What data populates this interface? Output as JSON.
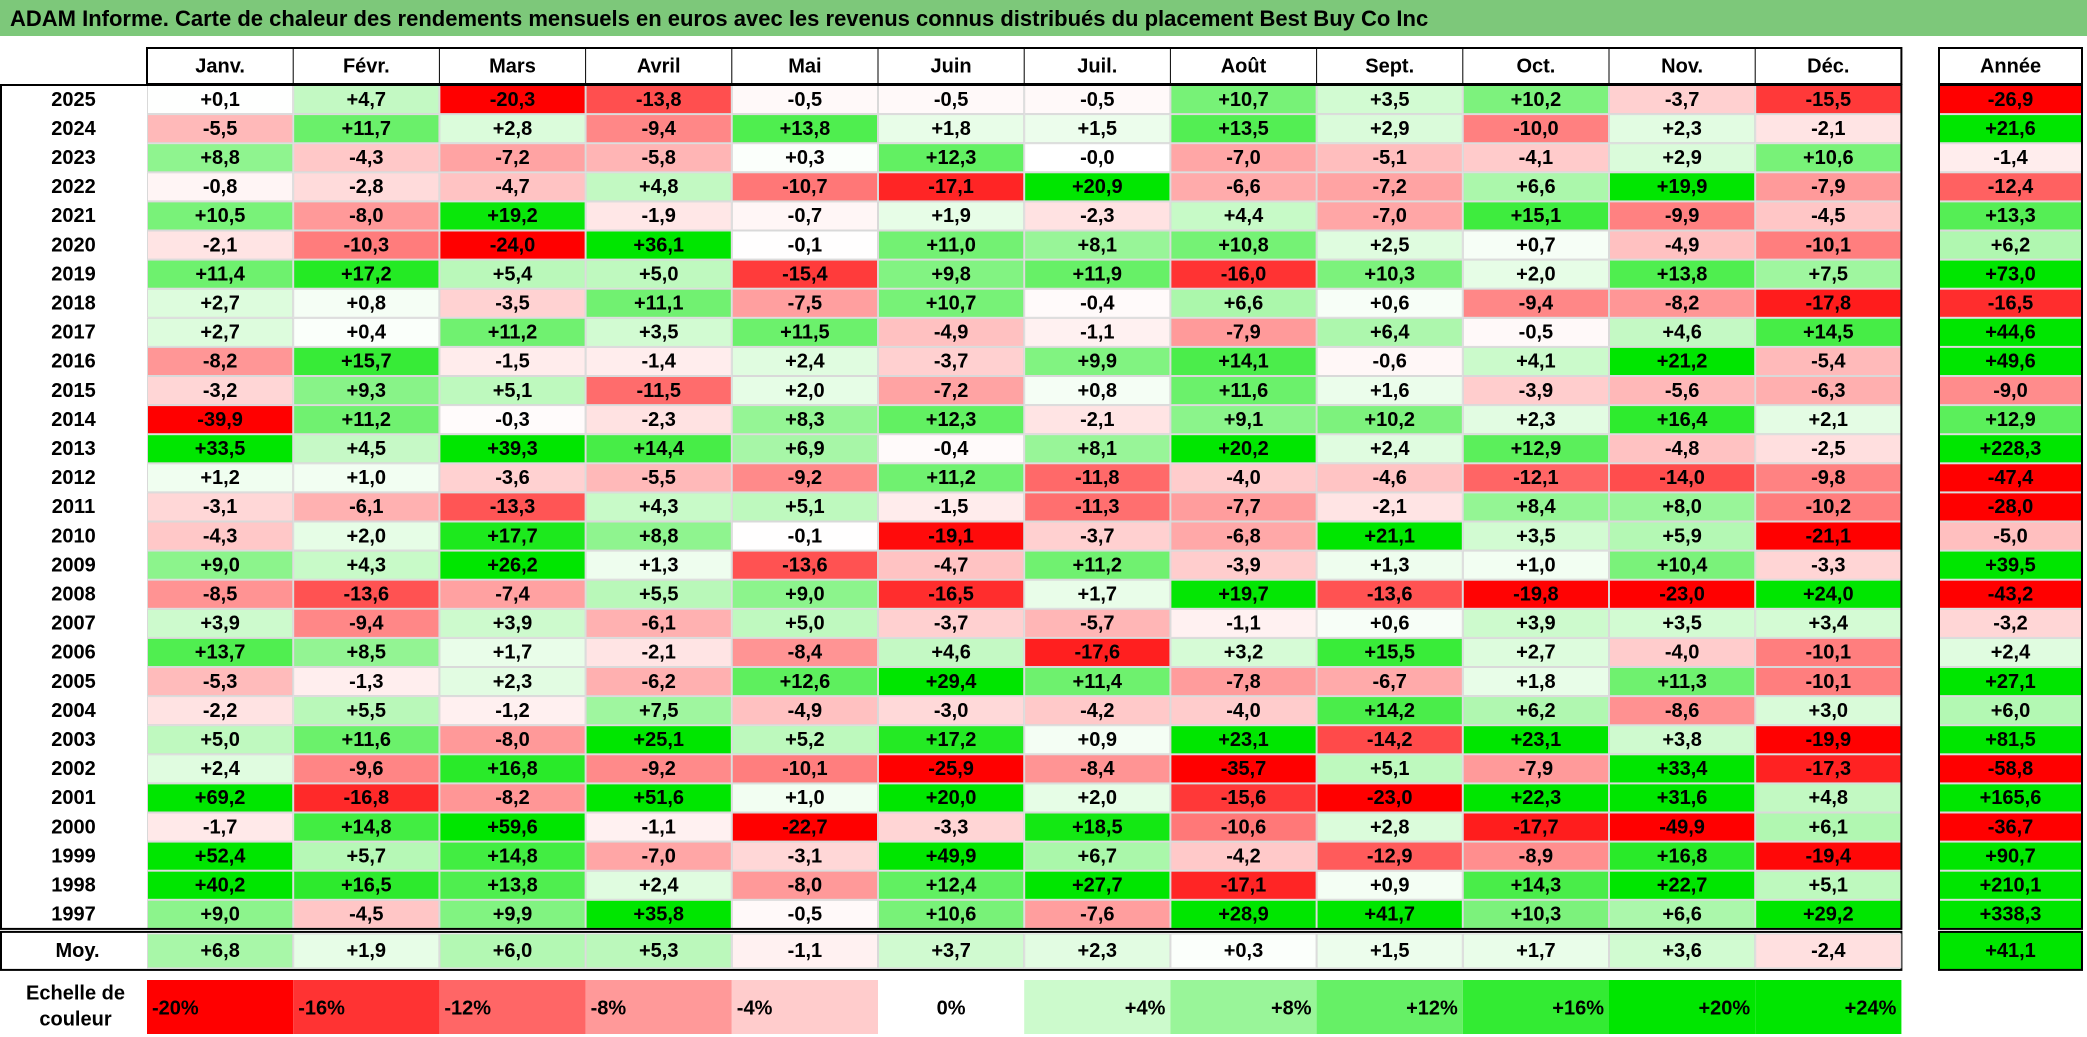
{
  "title": "ADAM Informe. Carte de chaleur des rendements mensuels en euros avec les revenus connus distribués du placement Best Buy Co Inc",
  "chart_data": {
    "type": "heatmap",
    "months": [
      "Janv.",
      "Févr.",
      "Mars",
      "Avril",
      "Mai",
      "Juin",
      "Juil.",
      "Août",
      "Sept.",
      "Oct.",
      "Nov.",
      "Déc."
    ],
    "year_header": "Année",
    "avg_label": "Moy.",
    "scale_label": "Echelle de couleur",
    "colors": {
      "negative_max": "#ff0000",
      "neutral": "#ffffff",
      "positive_max": "#00e600"
    },
    "rows": [
      {
        "year": "2025",
        "values": [
          "+0,1",
          "+4,7",
          "-20,3",
          "-13,8",
          "-0,5",
          "-0,5",
          "-0,5",
          "+10,7",
          "+3,5",
          "+10,2",
          "-3,7",
          "-15,5"
        ],
        "annual": "-26,9"
      },
      {
        "year": "2024",
        "values": [
          "-5,5",
          "+11,7",
          "+2,8",
          "-9,4",
          "+13,8",
          "+1,8",
          "+1,5",
          "+13,5",
          "+2,9",
          "-10,0",
          "+2,3",
          "-2,1"
        ],
        "annual": "+21,6"
      },
      {
        "year": "2023",
        "values": [
          "+8,8",
          "-4,3",
          "-7,2",
          "-5,8",
          "+0,3",
          "+12,3",
          "-0,0",
          "-7,0",
          "-5,1",
          "-4,1",
          "+2,9",
          "+10,6"
        ],
        "annual": "-1,4"
      },
      {
        "year": "2022",
        "values": [
          "-0,8",
          "-2,8",
          "-4,7",
          "+4,8",
          "-10,7",
          "-17,1",
          "+20,9",
          "-6,6",
          "-7,2",
          "+6,6",
          "+19,9",
          "-7,9"
        ],
        "annual": "-12,4"
      },
      {
        "year": "2021",
        "values": [
          "+10,5",
          "-8,0",
          "+19,2",
          "-1,9",
          "-0,7",
          "+1,9",
          "-2,3",
          "+4,4",
          "-7,0",
          "+15,1",
          "-9,9",
          "-4,5"
        ],
        "annual": "+13,3"
      },
      {
        "year": "2020",
        "values": [
          "-2,1",
          "-10,3",
          "-24,0",
          "+36,1",
          "-0,1",
          "+11,0",
          "+8,1",
          "+10,8",
          "+2,5",
          "+0,7",
          "-4,9",
          "-10,1"
        ],
        "annual": "+6,2"
      },
      {
        "year": "2019",
        "values": [
          "+11,4",
          "+17,2",
          "+5,4",
          "+5,0",
          "-15,4",
          "+9,8",
          "+11,9",
          "-16,0",
          "+10,3",
          "+2,0",
          "+13,8",
          "+7,5"
        ],
        "annual": "+73,0"
      },
      {
        "year": "2018",
        "values": [
          "+2,7",
          "+0,8",
          "-3,5",
          "+11,1",
          "-7,5",
          "+10,7",
          "-0,4",
          "+6,6",
          "+0,6",
          "-9,4",
          "-8,2",
          "-17,8"
        ],
        "annual": "-16,5"
      },
      {
        "year": "2017",
        "values": [
          "+2,7",
          "+0,4",
          "+11,2",
          "+3,5",
          "+11,5",
          "-4,9",
          "-1,1",
          "-7,9",
          "+6,4",
          "-0,5",
          "+4,6",
          "+14,5"
        ],
        "annual": "+44,6"
      },
      {
        "year": "2016",
        "values": [
          "-8,2",
          "+15,7",
          "-1,5",
          "-1,4",
          "+2,4",
          "-3,7",
          "+9,9",
          "+14,1",
          "-0,6",
          "+4,1",
          "+21,2",
          "-5,4"
        ],
        "annual": "+49,6"
      },
      {
        "year": "2015",
        "values": [
          "-3,2",
          "+9,3",
          "+5,1",
          "-11,5",
          "+2,0",
          "-7,2",
          "+0,8",
          "+11,6",
          "+1,6",
          "-3,9",
          "-5,6",
          "-6,3"
        ],
        "annual": "-9,0"
      },
      {
        "year": "2014",
        "values": [
          "-39,9",
          "+11,2",
          "-0,3",
          "-2,3",
          "+8,3",
          "+12,3",
          "-2,1",
          "+9,1",
          "+10,2",
          "+2,3",
          "+16,4",
          "+2,1"
        ],
        "annual": "+12,9"
      },
      {
        "year": "2013",
        "values": [
          "+33,5",
          "+4,5",
          "+39,3",
          "+14,4",
          "+6,9",
          "-0,4",
          "+8,1",
          "+20,2",
          "+2,4",
          "+12,9",
          "-4,8",
          "-2,5"
        ],
        "annual": "+228,3"
      },
      {
        "year": "2012",
        "values": [
          "+1,2",
          "+1,0",
          "-3,6",
          "-5,5",
          "-9,2",
          "+11,2",
          "-11,8",
          "-4,0",
          "-4,6",
          "-12,1",
          "-14,0",
          "-9,8"
        ],
        "annual": "-47,4"
      },
      {
        "year": "2011",
        "values": [
          "-3,1",
          "-6,1",
          "-13,3",
          "+4,3",
          "+5,1",
          "-1,5",
          "-11,3",
          "-7,7",
          "-2,1",
          "+8,4",
          "+8,0",
          "-10,2"
        ],
        "annual": "-28,0"
      },
      {
        "year": "2010",
        "values": [
          "-4,3",
          "+2,0",
          "+17,7",
          "+8,8",
          "-0,1",
          "-19,1",
          "-3,7",
          "-6,8",
          "+21,1",
          "+3,5",
          "+5,9",
          "-21,1"
        ],
        "annual": "-5,0"
      },
      {
        "year": "2009",
        "values": [
          "+9,0",
          "+4,3",
          "+26,2",
          "+1,3",
          "-13,6",
          "-4,7",
          "+11,2",
          "-3,9",
          "+1,3",
          "+1,0",
          "+10,4",
          "-3,3"
        ],
        "annual": "+39,5"
      },
      {
        "year": "2008",
        "values": [
          "-8,5",
          "-13,6",
          "-7,4",
          "+5,5",
          "+9,0",
          "-16,5",
          "+1,7",
          "+19,7",
          "-13,6",
          "-19,8",
          "-23,0",
          "+24,0"
        ],
        "annual": "-43,2"
      },
      {
        "year": "2007",
        "values": [
          "+3,9",
          "-9,4",
          "+3,9",
          "-6,1",
          "+5,0",
          "-3,7",
          "-5,7",
          "-1,1",
          "+0,6",
          "+3,9",
          "+3,5",
          "+3,4"
        ],
        "annual": "-3,2"
      },
      {
        "year": "2006",
        "values": [
          "+13,7",
          "+8,5",
          "+1,7",
          "-2,1",
          "-8,4",
          "+4,6",
          "-17,6",
          "+3,2",
          "+15,5",
          "+2,7",
          "-4,0",
          "-10,1"
        ],
        "annual": "+2,4"
      },
      {
        "year": "2005",
        "values": [
          "-5,3",
          "-1,3",
          "+2,3",
          "-6,2",
          "+12,6",
          "+29,4",
          "+11,4",
          "-7,8",
          "-6,7",
          "+1,8",
          "+11,3",
          "-10,1"
        ],
        "annual": "+27,1"
      },
      {
        "year": "2004",
        "values": [
          "-2,2",
          "+5,5",
          "-1,2",
          "+7,5",
          "-4,9",
          "-3,0",
          "-4,2",
          "-4,0",
          "+14,2",
          "+6,2",
          "-8,6",
          "+3,0"
        ],
        "annual": "+6,0"
      },
      {
        "year": "2003",
        "values": [
          "+5,0",
          "+11,6",
          "-8,0",
          "+25,1",
          "+5,2",
          "+17,2",
          "+0,9",
          "+23,1",
          "-14,2",
          "+23,1",
          "+3,8",
          "-19,9"
        ],
        "annual": "+81,5"
      },
      {
        "year": "2002",
        "values": [
          "+2,4",
          "-9,6",
          "+16,8",
          "-9,2",
          "-10,1",
          "-25,9",
          "-8,4",
          "-35,7",
          "+5,1",
          "-7,9",
          "+33,4",
          "-17,3"
        ],
        "annual": "-58,8"
      },
      {
        "year": "2001",
        "values": [
          "+69,2",
          "-16,8",
          "-8,2",
          "+51,6",
          "+1,0",
          "+20,0",
          "+2,0",
          "-15,6",
          "-23,0",
          "+22,3",
          "+31,6",
          "+4,8"
        ],
        "annual": "+165,6"
      },
      {
        "year": "2000",
        "values": [
          "-1,7",
          "+14,8",
          "+59,6",
          "-1,1",
          "-22,7",
          "-3,3",
          "+18,5",
          "-10,6",
          "+2,8",
          "-17,7",
          "-49,9",
          "+6,1"
        ],
        "annual": "-36,7"
      },
      {
        "year": "1999",
        "values": [
          "+52,4",
          "+5,7",
          "+14,8",
          "-7,0",
          "-3,1",
          "+49,9",
          "+6,7",
          "-4,2",
          "-12,9",
          "-8,9",
          "+16,8",
          "-19,4"
        ],
        "annual": "+90,7"
      },
      {
        "year": "1998",
        "values": [
          "+40,2",
          "+16,5",
          "+13,8",
          "+2,4",
          "-8,0",
          "+12,4",
          "+27,7",
          "-17,1",
          "+0,9",
          "+14,3",
          "+22,7",
          "+5,1"
        ],
        "annual": "+210,1"
      },
      {
        "year": "1997",
        "values": [
          "+9,0",
          "-4,5",
          "+9,9",
          "+35,8",
          "-0,5",
          "+10,6",
          "-7,6",
          "+28,9",
          "+41,7",
          "+10,3",
          "+6,6",
          "+29,2"
        ],
        "annual": "+338,3"
      }
    ],
    "averages": [
      "+6,8",
      "+1,9",
      "+6,0",
      "+5,3",
      "-1,1",
      "+3,7",
      "+2,3",
      "+0,3",
      "+1,5",
      "+1,7",
      "+3,6",
      "-2,4"
    ],
    "average_annual": "+41,1",
    "scale": [
      {
        "label": "-20%",
        "value": -20
      },
      {
        "label": "-16%",
        "value": -16
      },
      {
        "label": "-12%",
        "value": -12
      },
      {
        "label": "-8%",
        "value": -8
      },
      {
        "label": "-4%",
        "value": -4
      },
      {
        "label": "0%",
        "value": 0
      },
      {
        "label": "+4%",
        "value": 4
      },
      {
        "label": "+8%",
        "value": 8
      },
      {
        "label": "+12%",
        "value": 12
      },
      {
        "label": "+16%",
        "value": 16
      },
      {
        "label": "+20%",
        "value": 20
      },
      {
        "label": "+24%",
        "value": 24
      }
    ]
  }
}
